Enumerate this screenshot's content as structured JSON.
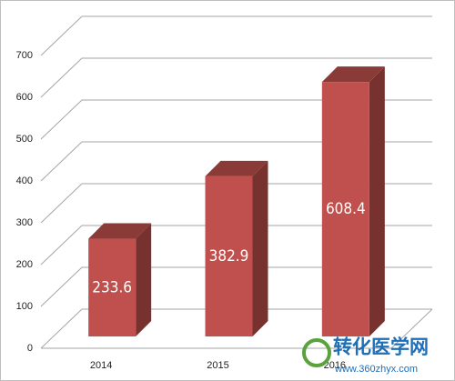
{
  "chart_data": {
    "type": "bar3d",
    "categories": [
      "2014",
      "2015",
      "2016"
    ],
    "values": [
      233.6,
      382.9,
      608.4
    ],
    "color": "#c0504d",
    "ylim": [
      0,
      700
    ],
    "yticks": [
      0,
      100,
      200,
      300,
      400,
      500,
      600,
      700
    ],
    "grid": true
  },
  "watermark": {
    "title": "转化医学网",
    "url": "www.360zhyx.com"
  }
}
